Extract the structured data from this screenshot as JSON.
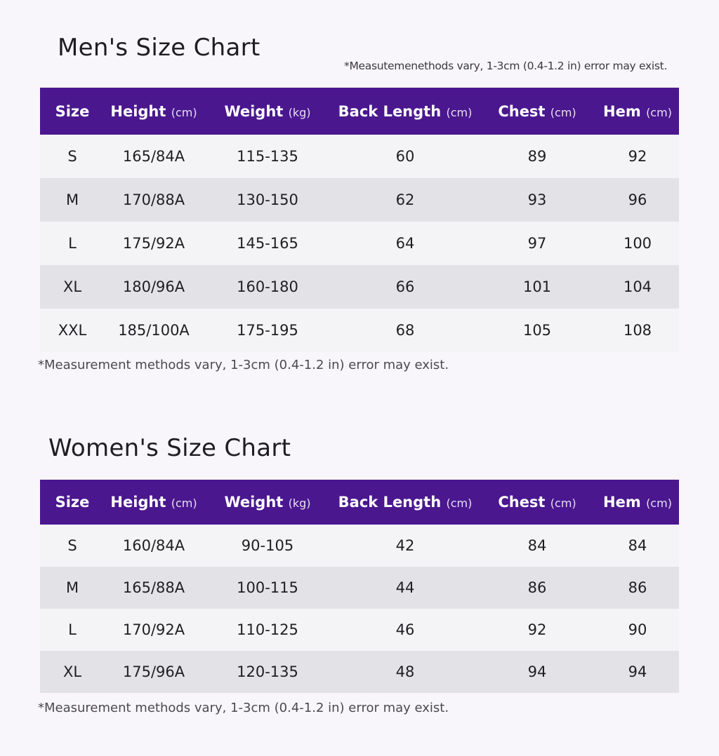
{
  "men": {
    "title": "Men's Size Chart",
    "top_note": "*Measutemenethods vary, 1-3cm (0.4-1.2 in) error may exist.",
    "headers": [
      {
        "label": "Size",
        "unit": ""
      },
      {
        "label": "Height",
        "unit": "(cm)"
      },
      {
        "label": "Weight",
        "unit": "(kg)"
      },
      {
        "label": "Back Length",
        "unit": "(cm)"
      },
      {
        "label": "Chest",
        "unit": "(cm)"
      },
      {
        "label": "Hem",
        "unit": "(cm)"
      }
    ],
    "rows": [
      [
        "S",
        "165/84A",
        "115-135",
        "60",
        "89",
        "92"
      ],
      [
        "M",
        "170/88A",
        "130-150",
        "62",
        "93",
        "96"
      ],
      [
        "L",
        "175/92A",
        "145-165",
        "64",
        "97",
        "100"
      ],
      [
        "XL",
        "180/96A",
        "160-180",
        "66",
        "101",
        "104"
      ],
      [
        "XXL",
        "185/100A",
        "175-195",
        "68",
        "105",
        "108"
      ]
    ],
    "note": "*Measurement methods vary, 1-3cm (0.4-1.2 in) error may exist."
  },
  "women": {
    "title": "Women's Size Chart",
    "headers": [
      {
        "label": "Size",
        "unit": ""
      },
      {
        "label": "Height",
        "unit": "(cm)"
      },
      {
        "label": "Weight",
        "unit": "(kg)"
      },
      {
        "label": "Back Length",
        "unit": "(cm)"
      },
      {
        "label": "Chest",
        "unit": "(cm)"
      },
      {
        "label": "Hem",
        "unit": "(cm)"
      }
    ],
    "rows": [
      [
        "S",
        "160/84A",
        "90-105",
        "42",
        "84",
        "84"
      ],
      [
        "M",
        "165/88A",
        "100-115",
        "44",
        "86",
        "86"
      ],
      [
        "L",
        "170/92A",
        "110-125",
        "46",
        "92",
        "90"
      ],
      [
        "XL",
        "175/96A",
        "120-135",
        "48",
        "94",
        "94"
      ]
    ],
    "note": "*Measurement methods vary, 1-3cm (0.4-1.2 in) error may exist."
  },
  "colors": {
    "header_bg": "#4a178f",
    "header_text": "#ffffff",
    "row_light": "#f4f3f6",
    "row_dark": "#e3e2e6",
    "page_bg": "#f8f6fa"
  }
}
